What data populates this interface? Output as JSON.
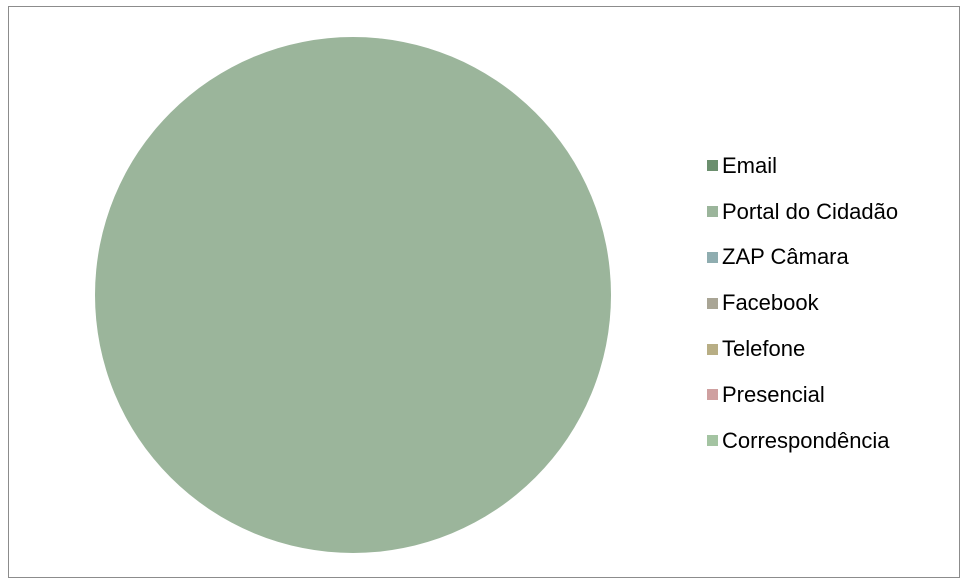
{
  "chart_data": {
    "type": "pie",
    "title": "",
    "legend_position": "right",
    "categories": [
      "Email",
      "Portal do Cidadão",
      "ZAP Câmara",
      "Facebook",
      "Telefone",
      "Presencial",
      "Correspondência"
    ],
    "values": [
      0,
      100,
      0,
      0,
      0,
      0,
      0
    ],
    "colors": [
      "#6b8f6e",
      "#9bb59b",
      "#8fadb0",
      "#a9a595",
      "#b8ae85",
      "#cfa0a0",
      "#a4c4a2"
    ]
  }
}
